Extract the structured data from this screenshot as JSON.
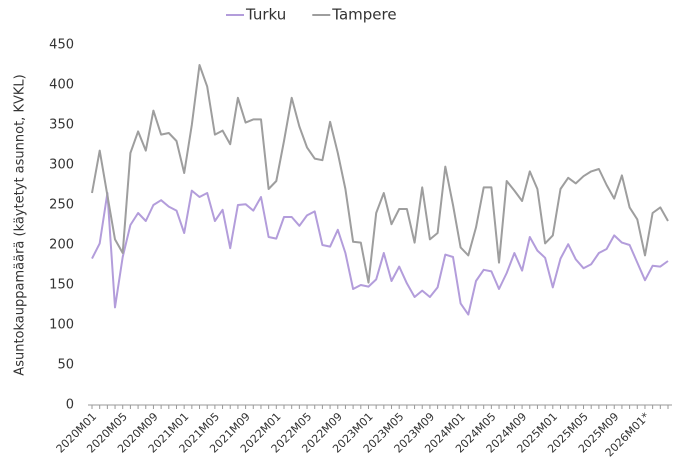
{
  "chart_data": {
    "type": "line",
    "y_label": "Asuntokauppamäärä (käytetyt asunnot, KVKL)",
    "categories": [
      "2020M01",
      null,
      null,
      null,
      "2020M05",
      null,
      null,
      null,
      "2020M09",
      null,
      null,
      null,
      "2021M01",
      null,
      null,
      null,
      "2021M05",
      null,
      null,
      null,
      "2021M09",
      null,
      null,
      null,
      "2022M01",
      null,
      null,
      null,
      "2022M05",
      null,
      null,
      null,
      "2022M09",
      null,
      null,
      null,
      "2023M01",
      null,
      null,
      null,
      "2023M05",
      null,
      null,
      null,
      "2023M09",
      null,
      null,
      null,
      "2024M01",
      null,
      null,
      null,
      "2024M05",
      null,
      null,
      null,
      "2024M09",
      null,
      null,
      null,
      "2025M01",
      null,
      null,
      null,
      "2025M05",
      null,
      null,
      null,
      "2025M09",
      null,
      null,
      null,
      "2026M01*",
      null,
      null,
      null
    ],
    "series": [
      {
        "name": "Turku",
        "color": "#b39ddb",
        "values": [
          183,
          202,
          265,
          122,
          185,
          225,
          240,
          230,
          250,
          256,
          248,
          243,
          215,
          268,
          260,
          265,
          230,
          244,
          196,
          250,
          251,
          243,
          260,
          210,
          208,
          235,
          235,
          224,
          237,
          242,
          200,
          198,
          219,
          190,
          145,
          150,
          148,
          157,
          190,
          155,
          173,
          152,
          135,
          143,
          135,
          147,
          188,
          185,
          127,
          113,
          155,
          169,
          167,
          145,
          165,
          190,
          168,
          210,
          193,
          184,
          147,
          183,
          201,
          182,
          171,
          176,
          190,
          195,
          212,
          203,
          200,
          178,
          156,
          174,
          173,
          180
        ]
      },
      {
        "name": "Tampere",
        "color": "#9e9e9e",
        "values": [
          265,
          318,
          262,
          207,
          190,
          315,
          342,
          318,
          368,
          338,
          340,
          330,
          290,
          350,
          425,
          398,
          338,
          343,
          326,
          384,
          353,
          357,
          357,
          270,
          280,
          330,
          384,
          348,
          322,
          308,
          306,
          354,
          315,
          270,
          204,
          203,
          153,
          240,
          265,
          226,
          245,
          245,
          203,
          272,
          207,
          215,
          298,
          250,
          197,
          187,
          222,
          272,
          272,
          178,
          280,
          268,
          255,
          292,
          270,
          202,
          212,
          270,
          284,
          277,
          286,
          292,
          295,
          275,
          258,
          287,
          247,
          232,
          187,
          240,
          247,
          230
        ]
      }
    ],
    "ylim": [
      0,
      450
    ],
    "yticks": [
      0,
      50,
      100,
      150,
      200,
      250,
      300,
      350,
      400,
      450
    ],
    "grid": false,
    "legend": "top"
  }
}
